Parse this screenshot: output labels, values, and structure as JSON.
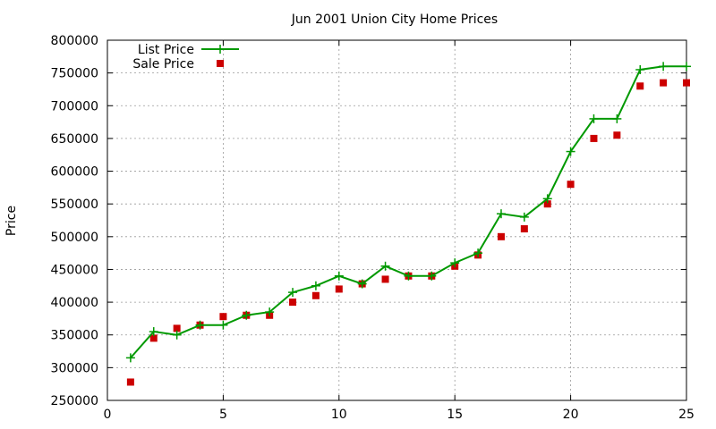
{
  "chart_data": {
    "type": "line",
    "title": "Jun 2001 Union City Home Prices",
    "xlabel": "",
    "ylabel": "Price",
    "xlim": [
      0,
      25
    ],
    "ylim": [
      250000,
      800000
    ],
    "x_ticks": [
      0,
      5,
      10,
      15,
      20,
      25
    ],
    "y_ticks": [
      250000,
      300000,
      350000,
      400000,
      450000,
      500000,
      550000,
      600000,
      650000,
      700000,
      750000,
      800000
    ],
    "grid": true,
    "legend_position": "top-left",
    "x": [
      1,
      2,
      3,
      4,
      5,
      6,
      7,
      8,
      9,
      10,
      11,
      12,
      13,
      14,
      15,
      16,
      17,
      18,
      19,
      20,
      21,
      22,
      23,
      24,
      25
    ],
    "series": [
      {
        "name": "List Price",
        "style": "line-with-plus-markers",
        "color": "#009900",
        "values": [
          315000,
          355000,
          350000,
          365000,
          365000,
          380000,
          385000,
          415000,
          425000,
          440000,
          428000,
          455000,
          440000,
          440000,
          460000,
          475000,
          535000,
          530000,
          558000,
          630000,
          680000,
          680000,
          755000,
          760000,
          760000
        ]
      },
      {
        "name": "Sale Price",
        "style": "square-markers",
        "color": "#cc0000",
        "values": [
          278000,
          345000,
          360000,
          365000,
          378000,
          380000,
          380000,
          400000,
          410000,
          420000,
          428000,
          435000,
          440000,
          440000,
          455000,
          472000,
          500000,
          512000,
          550000,
          580000,
          650000,
          655000,
          730000,
          735000,
          735000
        ]
      }
    ]
  }
}
